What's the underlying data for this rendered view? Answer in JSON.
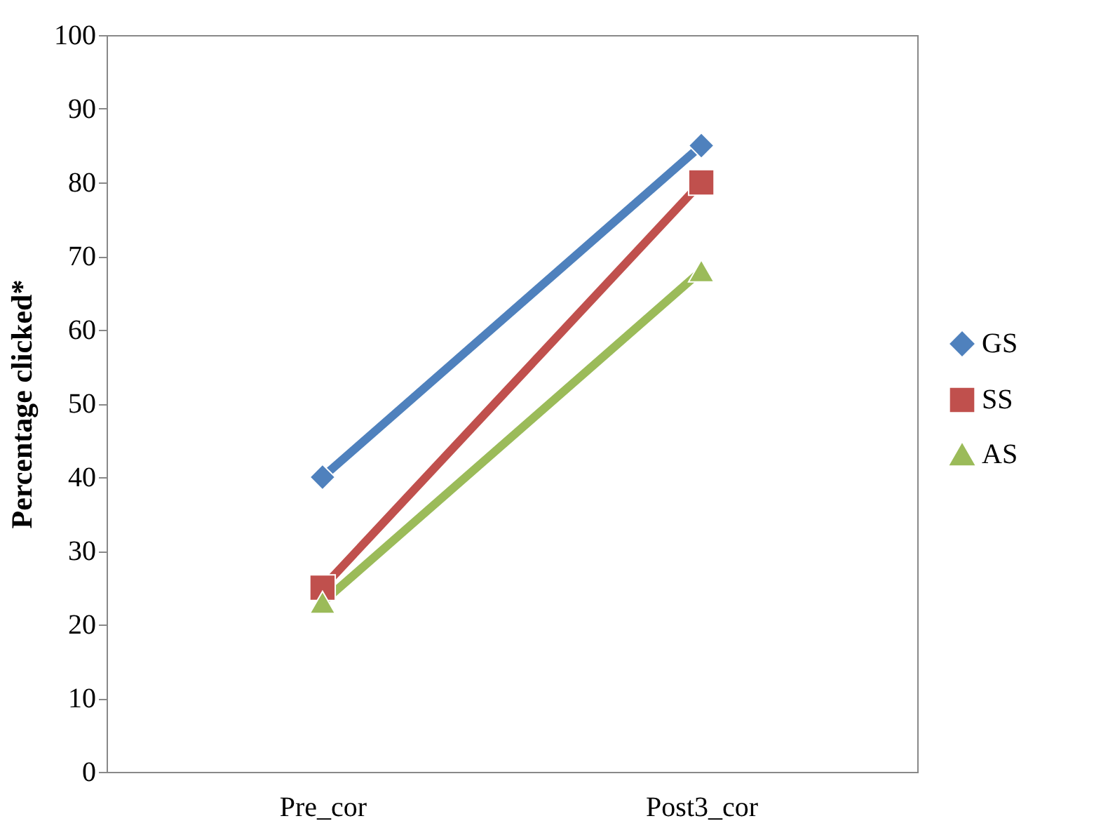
{
  "chart_data": {
    "type": "line",
    "ylabel": "Percentage clicked*",
    "categories": [
      "Pre_cor",
      "Post3_cor"
    ],
    "series": [
      {
        "name": "GS",
        "color": "#4f81bd",
        "marker": "diamond",
        "values": [
          40,
          85
        ]
      },
      {
        "name": "SS",
        "color": "#c0504d",
        "marker": "square",
        "values": [
          25,
          80
        ]
      },
      {
        "name": "AS",
        "color": "#9bbb59",
        "marker": "triangle",
        "values": [
          23,
          68
        ]
      }
    ],
    "ylim": [
      0,
      100
    ],
    "yticks": [
      0,
      10,
      20,
      30,
      40,
      50,
      60,
      70,
      80,
      90,
      100
    ],
    "grid": false,
    "legend": "right",
    "line_style": "solid"
  }
}
